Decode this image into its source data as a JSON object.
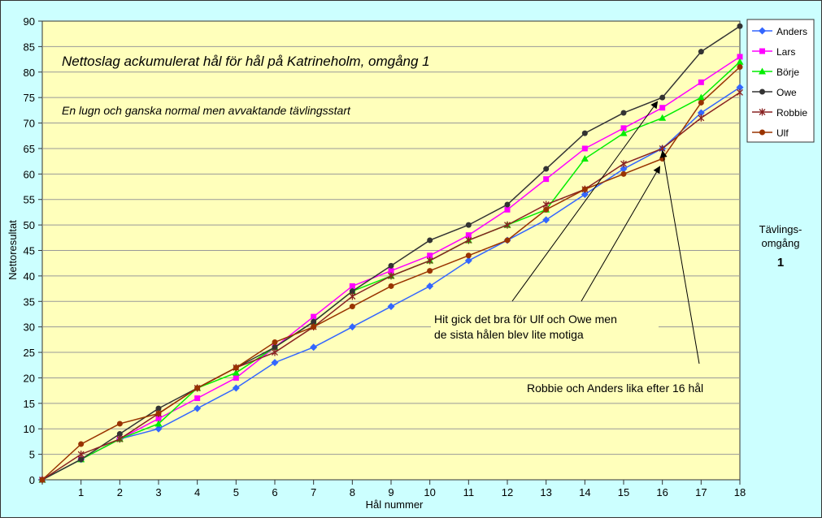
{
  "chart_data": {
    "type": "line",
    "title": "Nettoslag ackumulerat hål för hål på Katrineholm, omgång 1",
    "subtitle": "En lugn och ganska normal men avvaktande tävlingsstart",
    "xlabel": "Hål nummer",
    "ylabel": "Nettoresultat",
    "x": [
      0,
      1,
      2,
      3,
      4,
      5,
      6,
      7,
      8,
      9,
      10,
      11,
      12,
      13,
      14,
      15,
      16,
      17,
      18
    ],
    "x_tick_labels": [
      "1",
      "2",
      "3",
      "4",
      "5",
      "6",
      "7",
      "8",
      "9",
      "10",
      "11",
      "12",
      "13",
      "14",
      "15",
      "16",
      "17",
      "18"
    ],
    "xlim": [
      0,
      18
    ],
    "ylim": [
      0,
      90
    ],
    "y_ticks": [
      0,
      5,
      10,
      15,
      20,
      25,
      30,
      35,
      40,
      45,
      50,
      55,
      60,
      65,
      70,
      75,
      80,
      85,
      90
    ],
    "grid": true,
    "legend_position": "right",
    "series": [
      {
        "name": "Anders",
        "color": "#3366ff",
        "marker": "diamond",
        "values": [
          0,
          4,
          8,
          10,
          14,
          18,
          23,
          26,
          30,
          34,
          38,
          43,
          47,
          51,
          56,
          61,
          65,
          72,
          77
        ]
      },
      {
        "name": "Lars",
        "color": "#ff00ff",
        "marker": "square",
        "values": [
          0,
          4,
          8,
          12,
          16,
          20,
          26,
          32,
          38,
          41,
          44,
          48,
          53,
          59,
          65,
          69,
          73,
          78,
          83
        ]
      },
      {
        "name": "Börje",
        "color": "#00ee00",
        "marker": "triangle",
        "values": [
          0,
          4,
          8,
          11,
          18,
          21,
          26,
          31,
          37,
          40,
          43,
          47,
          50,
          53,
          63,
          68,
          71,
          75,
          82
        ]
      },
      {
        "name": "Owe",
        "color": "#333333",
        "marker": "circle",
        "values": [
          0,
          4,
          9,
          14,
          18,
          22,
          26,
          31,
          37,
          42,
          47,
          50,
          54,
          61,
          68,
          72,
          75,
          84,
          89
        ]
      },
      {
        "name": "Robbie",
        "color": "#882222",
        "marker": "star",
        "values": [
          0,
          5,
          8,
          13,
          18,
          22,
          25,
          30,
          36,
          40,
          43,
          47,
          50,
          54,
          57,
          62,
          65,
          71,
          76
        ]
      },
      {
        "name": "Ulf",
        "color": "#993300",
        "marker": "circle",
        "values": [
          0,
          7,
          11,
          13,
          18,
          22,
          27,
          30,
          34,
          38,
          41,
          44,
          47,
          53,
          57,
          60,
          63,
          74,
          81
        ]
      }
    ],
    "annotations": {
      "side_label_line1": "Tävlings-",
      "side_label_line2": "omgång",
      "side_number": "1",
      "note1_line1": "Hit gick det bra för Ulf och Owe men",
      "note1_line2": "de sista hålen blev lite motiga",
      "note2": "Robbie och Anders lika efter 16 hål"
    },
    "colors": {
      "plot_background": "#ffffbb",
      "outer_background": "#ccffff",
      "grid": "#999999"
    }
  }
}
